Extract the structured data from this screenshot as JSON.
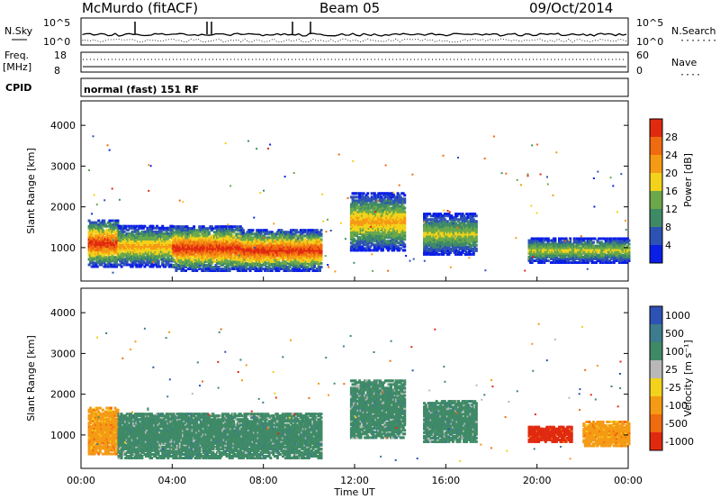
{
  "header": {
    "station": "McMurdo (fitACF)",
    "beam": "Beam 05",
    "date": "09/Oct/2014"
  },
  "noise_panel": {
    "left_label": "N.Sky",
    "right_label": "N.Search",
    "right_legend_line": "·······",
    "left_ticks": [
      "10^5",
      "10^0"
    ],
    "right_ticks": [
      "10^5",
      "10^0"
    ]
  },
  "freq_panel": {
    "left_label_1": "Freq.",
    "left_label_2": "[MHz]",
    "right_label": "Nave",
    "right_legend_line": "····",
    "left_ticks": [
      "18",
      "8"
    ],
    "right_ticks": [
      "60",
      "0"
    ]
  },
  "cpid_panel": {
    "label": "CPID",
    "text": "normal (fast) 151 RF"
  },
  "chart_data": [
    {
      "type": "heatmap",
      "name": "power",
      "ylabel": "Slant Range [km]",
      "xlabel": "Time UT",
      "x_ticks": [
        "00:00",
        "04:00",
        "08:00",
        "12:00",
        "16:00",
        "20:00",
        "00:00"
      ],
      "x_range_hours": [
        0,
        24
      ],
      "ylim_km": [
        180,
        4600
      ],
      "y_ticks": [
        1000,
        2000,
        3000,
        4000
      ],
      "colorbar": {
        "label": "Power [dB]",
        "ticks": [
          "4",
          "8",
          "12",
          "16",
          "20",
          "24",
          "28"
        ],
        "colors": [
          "#0a1ee6",
          "#2e52b4",
          "#3f8a66",
          "#6aa84a",
          "#f2d21a",
          "#f59a14",
          "#f06a10",
          "#e02a10"
        ]
      },
      "regions": [
        {
          "t0": 0.3,
          "t1": 1.6,
          "r0": 500,
          "r1": 1650,
          "peak_db": 28
        },
        {
          "t0": 1.6,
          "t1": 4.0,
          "r0": 500,
          "r1": 1500,
          "peak_db": 20
        },
        {
          "t0": 4.0,
          "t1": 7.0,
          "r0": 400,
          "r1": 1500,
          "peak_db": 28
        },
        {
          "t0": 7.0,
          "t1": 10.5,
          "r0": 400,
          "r1": 1400,
          "peak_db": 28
        },
        {
          "t0": 11.8,
          "t1": 14.2,
          "r0": 900,
          "r1": 2300,
          "peak_db": 20
        },
        {
          "t0": 15.0,
          "t1": 17.3,
          "r0": 800,
          "r1": 1800,
          "peak_db": 16
        },
        {
          "t0": 19.6,
          "t1": 24.0,
          "r0": 600,
          "r1": 1200,
          "peak_db": 16
        }
      ]
    },
    {
      "type": "heatmap",
      "name": "velocity",
      "ylabel": "Slant Range [km]",
      "xlabel": "Time UT",
      "x_ticks": [
        "00:00",
        "04:00",
        "08:00",
        "12:00",
        "16:00",
        "20:00",
        "00:00"
      ],
      "x_range_hours": [
        0,
        24
      ],
      "ylim_km": [
        180,
        4600
      ],
      "y_ticks": [
        1000,
        2000,
        3000,
        4000
      ],
      "colorbar": {
        "label": "Velocity [m s⁻¹]",
        "ticks": [
          "1000",
          "500",
          "100",
          "25",
          "-25",
          "-100",
          "-500",
          "-1000"
        ],
        "colors": [
          "#2e52b4",
          "#3c7c8c",
          "#3f8a66",
          "#b8b8b8",
          "#f2d21a",
          "#f59a14",
          "#f06a10",
          "#e02a10"
        ]
      },
      "regions": [
        {
          "t0": 0.3,
          "t1": 1.6,
          "r0": 500,
          "r1": 1650,
          "velocity": -300
        },
        {
          "t0": 1.6,
          "t1": 10.5,
          "r0": 400,
          "r1": 1500,
          "velocity": 100
        },
        {
          "t0": 11.8,
          "t1": 14.2,
          "r0": 900,
          "r1": 2300,
          "velocity": 100
        },
        {
          "t0": 15.0,
          "t1": 17.3,
          "r0": 800,
          "r1": 1800,
          "velocity": 100
        },
        {
          "t0": 19.6,
          "t1": 21.5,
          "r0": 800,
          "r1": 1200,
          "velocity": -700
        },
        {
          "t0": 22.0,
          "t1": 24.0,
          "r0": 700,
          "r1": 1300,
          "velocity": -300
        }
      ]
    }
  ],
  "x_axis": {
    "ticks": [
      "00:00",
      "04:00",
      "08:00",
      "12:00",
      "16:00",
      "20:00",
      "00:00"
    ],
    "label": "Time UT"
  }
}
